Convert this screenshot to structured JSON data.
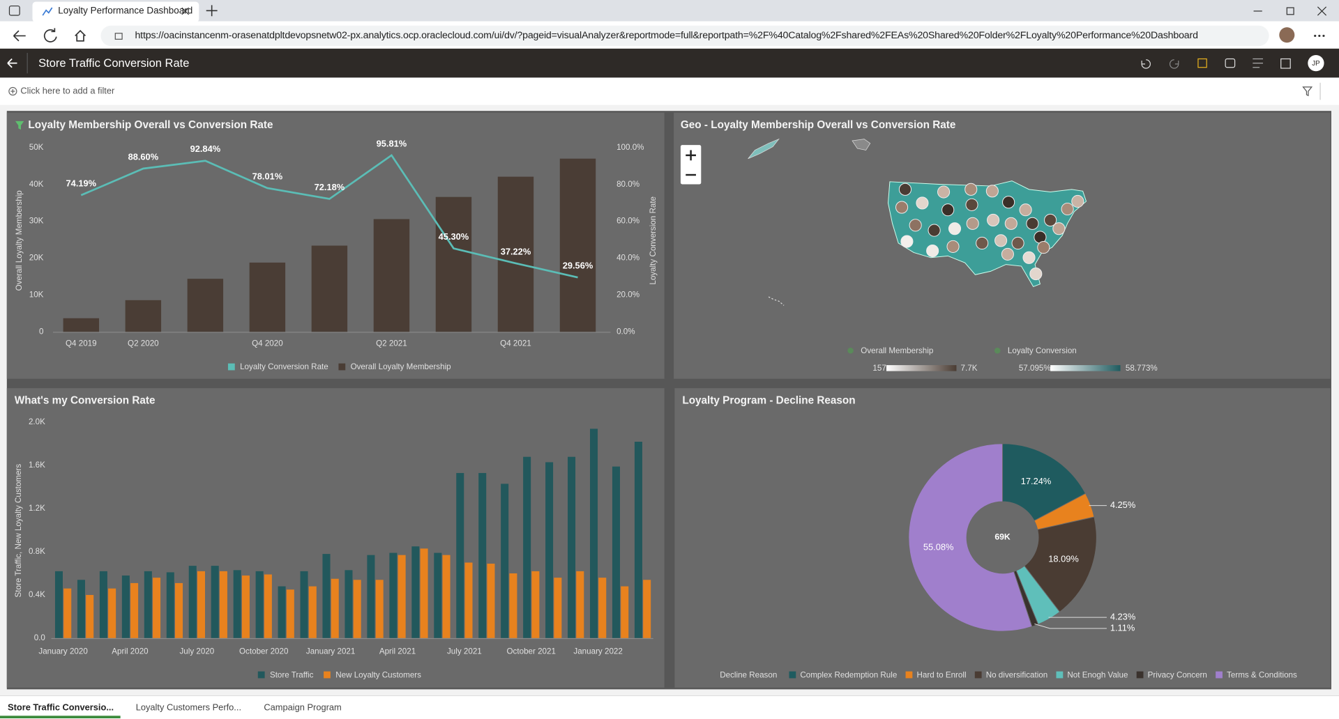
{
  "browser": {
    "tab_title": "Loyalty Performance Dashboard",
    "url": "https://oacinstancenm-orasenatdpltdevopsnetw02-px.analytics.ocp.oraclecloud.com/ui/dv/?pageid=visualAnalyzer&reportmode=full&reportpath=%2F%40Catalog%2Fshared%2FEAs%20Shared%20Folder%2FLoyalty%20Performance%20Dashboard"
  },
  "app": {
    "title": "Store Traffic Conversion Rate",
    "filter_hint": "Click here to add a filter",
    "avatar": "JP",
    "canvas_tabs": [
      "Store Traffic Conversio...",
      "Loyalty Customers Perfo...",
      "Campaign Program"
    ]
  },
  "chart_data": [
    {
      "type": "combo",
      "title": "Loyalty Membership Overall vs Conversion Rate",
      "categories": [
        "Q4 2019",
        "Q2 2020",
        null,
        "Q4 2020",
        null,
        "Q2 2021",
        null,
        "Q4 2021",
        null
      ],
      "series": [
        {
          "name": "Loyalty Conversion Rate",
          "type": "line",
          "axis": "y2",
          "color": "#5bbdb6",
          "values": [
            74.19,
            88.6,
            92.84,
            78.01,
            72.18,
            95.81,
            45.3,
            37.22,
            29.56
          ],
          "value_labels": [
            "74.19%",
            "88.60%",
            "92.84%",
            "78.01%",
            "72.18%",
            "95.81%",
            "45.30%",
            "37.22%",
            "29.56%"
          ]
        },
        {
          "name": "Overall Loyalty Membership",
          "type": "bar",
          "color": "#4a3d35",
          "values": [
            3700,
            8600,
            14400,
            18800,
            23400,
            30600,
            36600,
            42100,
            47000
          ]
        }
      ],
      "y_label": "Overall Loyalty Membership",
      "y2_label": "Loyalty Conversion Rate",
      "ylim": [
        0,
        50000
      ],
      "yticks": [
        0,
        {
          "value": 10000,
          "label": "10K"
        },
        {
          "value": 20000,
          "label": "20K"
        },
        {
          "value": 30000,
          "label": "30K"
        },
        {
          "value": 40000,
          "label": "40K"
        },
        {
          "value": 50000,
          "label": "50K"
        }
      ],
      "y2lim": [
        0,
        100
      ],
      "y2ticks": [
        {
          "value": 0,
          "label": "0.0%"
        },
        {
          "value": 20,
          "label": "20.0%"
        },
        {
          "value": 40,
          "label": "40.0%"
        },
        {
          "value": 60,
          "label": "60.0%"
        },
        {
          "value": 80,
          "label": "80.0%"
        },
        {
          "value": 100,
          "label": "100.0%"
        }
      ]
    },
    {
      "type": "map",
      "title": "Geo - Loyalty Membership Overall vs Conversion Rate",
      "legends": [
        {
          "name": "Overall Membership",
          "range": [
            157,
            {
              "value": 7700,
              "label": "7.7K"
            }
          ]
        },
        {
          "name": "Loyalty Conversion",
          "range": [
            {
              "value": 57.095,
              "label": "57.095%"
            },
            {
              "value": 58.773,
              "label": "58.773%"
            }
          ]
        }
      ]
    },
    {
      "type": "bar",
      "title": "What's my Conversion Rate",
      "categories": [
        "January 2020",
        null,
        null,
        "April 2020",
        null,
        null,
        "July 2020",
        null,
        null,
        "October 2020",
        null,
        null,
        "January 2021",
        null,
        null,
        "April 2021",
        null,
        null,
        "July 2021",
        null,
        null,
        "October 2021",
        null,
        null,
        "January 2022",
        null,
        null
      ],
      "series": [
        {
          "name": "Store Traffic",
          "color": "#22585c",
          "values": [
            620,
            540,
            620,
            580,
            620,
            610,
            670,
            670,
            630,
            620,
            480,
            620,
            780,
            630,
            770,
            790,
            850,
            790,
            1530,
            1530,
            1430,
            1680,
            1630,
            1680,
            1940,
            1590,
            1820
          ]
        },
        {
          "name": "New Loyalty Customers",
          "color": "#e8821e",
          "values": [
            460,
            400,
            460,
            510,
            560,
            510,
            620,
            620,
            580,
            590,
            450,
            480,
            550,
            540,
            540,
            770,
            830,
            770,
            700,
            690,
            600,
            620,
            560,
            620,
            560,
            480,
            540
          ]
        }
      ],
      "y_label": "Store Traffic, New Loyalty Customers",
      "ylim": [
        0,
        2000
      ],
      "yticks": [
        {
          "value": 0,
          "label": "0.0"
        },
        {
          "value": 400,
          "label": "0.4K"
        },
        {
          "value": 800,
          "label": "0.8K"
        },
        {
          "value": 1200,
          "label": "1.2K"
        },
        {
          "value": 1600,
          "label": "1.6K"
        },
        {
          "value": 2000,
          "label": "2.0K"
        }
      ]
    },
    {
      "type": "pie",
      "title": "Loyalty Program - Decline Reason",
      "legend_title": "Decline Reason",
      "center_label": "69K",
      "categories": [
        "Complex Redemption Rule",
        "Hard to Enroll",
        "No diversification",
        "Not Enogh Value",
        "Privacy Concern",
        "Terms & Conditions"
      ],
      "values": [
        17.24,
        4.25,
        18.09,
        4.23,
        1.11,
        55.08
      ],
      "value_labels": [
        "17.24%",
        "4.25%",
        "18.09%",
        "4.23%",
        "1.11%",
        "55.08%"
      ],
      "colors": [
        "#1f5b5f",
        "#e8821e",
        "#4a3c33",
        "#5fbfba",
        "#3a322d",
        "#a07fcc"
      ]
    }
  ]
}
